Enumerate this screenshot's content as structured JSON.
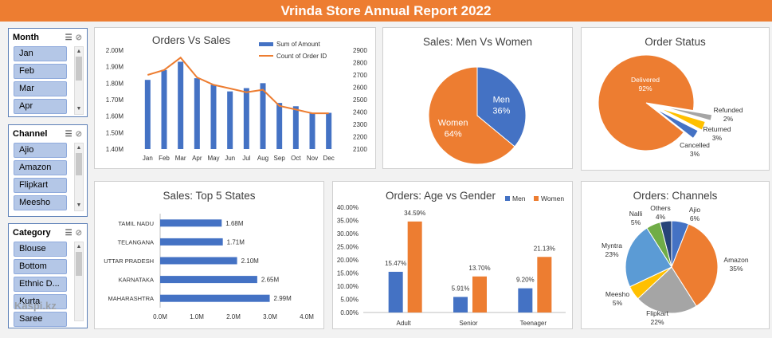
{
  "header": {
    "title": "Vrinda Store Annual Report 2022"
  },
  "slicers": [
    {
      "name": "Month",
      "items": [
        "Jan",
        "Feb",
        "Mar",
        "Apr"
      ]
    },
    {
      "name": "Channel",
      "items": [
        "Ajio",
        "Amazon",
        "Flipkart",
        "Meesho"
      ]
    },
    {
      "name": "Category",
      "items": [
        "Blouse",
        "Bottom",
        "Ethnic D...",
        "Kurta",
        "Saree"
      ]
    }
  ],
  "watermark": "Kaspi.kz",
  "chart_data": [
    {
      "id": "orders-vs-sales",
      "type": "bar",
      "title": "Orders Vs Sales",
      "categories": [
        "Jan",
        "Feb",
        "Mar",
        "Apr",
        "May",
        "Jun",
        "Jul",
        "Aug",
        "Sep",
        "Oct",
        "Nov",
        "Dec"
      ],
      "series": [
        {
          "name": "Sum of Amount",
          "type": "bar",
          "axis": "left",
          "values": [
            1.82,
            1.88,
            1.93,
            1.83,
            1.79,
            1.75,
            1.77,
            1.8,
            1.68,
            1.66,
            1.62,
            1.62
          ]
        },
        {
          "name": "Count of Order ID",
          "type": "line",
          "axis": "right",
          "values": [
            2700,
            2740,
            2840,
            2680,
            2620,
            2590,
            2560,
            2580,
            2450,
            2420,
            2390,
            2390
          ]
        }
      ],
      "y_left_ticks": [
        "1.40M",
        "1.50M",
        "1.60M",
        "1.70M",
        "1.80M",
        "1.90M",
        "2.00M"
      ],
      "y_left_range": [
        1.4,
        2.0
      ],
      "y_right_ticks": [
        "2100",
        "2200",
        "2300",
        "2400",
        "2500",
        "2600",
        "2700",
        "2800",
        "2900"
      ],
      "y_right_range": [
        2100,
        2900
      ],
      "legend": "top-right",
      "colors": {
        "bar": "#4472c4",
        "line": "#ed7d31"
      }
    },
    {
      "id": "sales-men-women",
      "type": "pie",
      "title": "Sales: Men Vs Women",
      "slices": [
        {
          "label": "Men",
          "percent_label": "36%",
          "value": 36,
          "color": "#4472c4"
        },
        {
          "label": "Women",
          "percent_label": "64%",
          "value": 64,
          "color": "#ed7d31"
        }
      ]
    },
    {
      "id": "order-status",
      "type": "pie",
      "title": "Order Status",
      "slices": [
        {
          "label": "Delivered",
          "percent_label": "92%",
          "value": 92,
          "color": "#ed7d31"
        },
        {
          "label": "Refunded",
          "percent_label": "2%",
          "value": 2,
          "color": "#a5a5a5"
        },
        {
          "label": "Returned",
          "percent_label": "3%",
          "value": 3,
          "color": "#ffc000"
        },
        {
          "label": "Cancelled",
          "percent_label": "3%",
          "value": 3,
          "color": "#4472c4"
        }
      ]
    },
    {
      "id": "top-5-states",
      "type": "bar",
      "orientation": "horizontal",
      "title": "Sales: Top 5 States",
      "categories": [
        "TAMIL NADU",
        "TELANGANA",
        "UTTAR PRADESH",
        "KARNATAKA",
        "MAHARASHTRA"
      ],
      "values": [
        1.68,
        1.71,
        2.1,
        2.65,
        2.99
      ],
      "value_labels": [
        "1.68M",
        "1.71M",
        "2.10M",
        "2.65M",
        "2.99M"
      ],
      "x_ticks": [
        "0.0M",
        "1.0M",
        "2.0M",
        "3.0M",
        "4.0M"
      ],
      "xlim": [
        0,
        4
      ],
      "color": "#4472c4"
    },
    {
      "id": "age-vs-gender",
      "type": "bar",
      "title": "Orders: Age vs Gender",
      "categories": [
        "Adult",
        "Senior",
        "Teenager"
      ],
      "series": [
        {
          "name": "Men",
          "values": [
            15.47,
            5.91,
            9.2
          ],
          "labels": [
            "15.47%",
            "5.91%",
            "9.20%"
          ],
          "color": "#4472c4"
        },
        {
          "name": "Women",
          "values": [
            34.59,
            13.7,
            21.13
          ],
          "labels": [
            "34.59%",
            "13.70%",
            "21.13%"
          ],
          "color": "#ed7d31"
        }
      ],
      "y_ticks": [
        "0.00%",
        "5.00%",
        "10.00%",
        "15.00%",
        "20.00%",
        "25.00%",
        "30.00%",
        "35.00%",
        "40.00%"
      ],
      "ylim": [
        0,
        40
      ],
      "legend": "top-right"
    },
    {
      "id": "channels",
      "type": "pie",
      "title": "Orders: Channels",
      "slices": [
        {
          "label": "Ajio",
          "percent_label": "6%",
          "value": 6,
          "color": "#4472c4"
        },
        {
          "label": "Amazon",
          "percent_label": "35%",
          "value": 35,
          "color": "#ed7d31"
        },
        {
          "label": "Flipkart",
          "percent_label": "22%",
          "value": 22,
          "color": "#a5a5a5"
        },
        {
          "label": "Meesho",
          "percent_label": "5%",
          "value": 5,
          "color": "#ffc000"
        },
        {
          "label": "Myntra",
          "percent_label": "23%",
          "value": 23,
          "color": "#5b9bd5"
        },
        {
          "label": "Nalli",
          "percent_label": "5%",
          "value": 5,
          "color": "#70ad47"
        },
        {
          "label": "Others",
          "percent_label": "4%",
          "value": 4,
          "color": "#264478"
        }
      ]
    }
  ]
}
